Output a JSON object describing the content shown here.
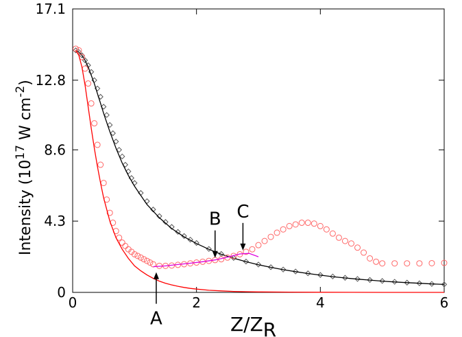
{
  "chart_data": {
    "type": "line",
    "xlabel": "Z/Z",
    "xlabel_sub": "R",
    "ylabel": "Intensity (10",
    "ylabel_sup1": "17",
    "ylabel_mid": " W cm",
    "ylabel_sup2": "-2",
    "ylabel_end": ")",
    "xlim": [
      0,
      6
    ],
    "ylim": [
      0,
      17.1
    ],
    "xticks": [
      0,
      2,
      4,
      6
    ],
    "xtick_labels": [
      "0",
      "2",
      "4",
      "6"
    ],
    "yticks": [
      0,
      4.3,
      8.6,
      12.8,
      17.1
    ],
    "ytick_labels": [
      "0",
      "4.3",
      "8.6",
      "12.8",
      "17.1"
    ],
    "grid": false,
    "series": [
      {
        "marker": "diamond",
        "color": "#555555",
        "style": "markers",
        "x": [
          0.05,
          0.1,
          0.15,
          0.2,
          0.25,
          0.3,
          0.35,
          0.4,
          0.45,
          0.5,
          0.55,
          0.6,
          0.65,
          0.7,
          0.75,
          0.8,
          0.85,
          0.9,
          0.95,
          1.0,
          1.1,
          1.2,
          1.3,
          1.4,
          1.5,
          1.6,
          1.7,
          1.8,
          1.9,
          2.0,
          2.2,
          2.4,
          2.6,
          2.8,
          3.0,
          3.2,
          3.4,
          3.6,
          3.8,
          4.0,
          4.2,
          4.4,
          4.6,
          4.8,
          5.0,
          5.2,
          5.4,
          5.6,
          5.8,
          6.0
        ],
        "y": [
          14.6,
          14.5,
          14.3,
          14.0,
          13.7,
          13.3,
          12.8,
          12.3,
          11.8,
          11.2,
          10.7,
          10.1,
          9.6,
          9.1,
          8.6,
          8.2,
          7.7,
          7.3,
          6.9,
          6.6,
          6.0,
          5.5,
          5.0,
          4.6,
          4.25,
          3.95,
          3.65,
          3.4,
          3.18,
          2.98,
          2.62,
          2.32,
          2.08,
          1.86,
          1.68,
          1.52,
          1.38,
          1.26,
          1.15,
          1.05,
          0.96,
          0.88,
          0.81,
          0.75,
          0.69,
          0.64,
          0.59,
          0.55,
          0.51,
          0.48
        ]
      },
      {
        "marker": "none",
        "color": "#000000",
        "style": "line",
        "x": [
          0.05,
          0.1,
          0.15,
          0.2,
          0.25,
          0.3,
          0.35,
          0.4,
          0.45,
          0.5,
          0.6,
          0.7,
          0.8,
          0.9,
          1.0,
          1.2,
          1.4,
          1.6,
          1.8,
          2.0,
          2.2,
          2.4,
          2.6,
          2.8,
          3.0,
          3.2,
          3.4,
          3.6,
          3.8,
          4.0,
          4.2,
          4.4,
          4.6,
          4.8,
          5.0,
          5.2,
          5.4,
          5.6,
          5.8,
          6.0
        ],
        "y": [
          14.6,
          14.5,
          14.3,
          14.0,
          13.6,
          13.1,
          12.6,
          12.0,
          11.4,
          10.8,
          9.7,
          8.7,
          7.8,
          7.05,
          6.4,
          5.3,
          4.5,
          3.85,
          3.35,
          2.95,
          2.6,
          2.3,
          2.06,
          1.85,
          1.67,
          1.51,
          1.37,
          1.25,
          1.14,
          1.04,
          0.95,
          0.87,
          0.8,
          0.74,
          0.68,
          0.63,
          0.59,
          0.55,
          0.51,
          0.48
        ]
      },
      {
        "marker": "circle",
        "color": "#ff6666",
        "style": "markers",
        "x": [
          0.05,
          0.1,
          0.15,
          0.2,
          0.25,
          0.3,
          0.35,
          0.4,
          0.45,
          0.5,
          0.55,
          0.6,
          0.65,
          0.7,
          0.75,
          0.8,
          0.85,
          0.9,
          0.95,
          1.0,
          1.05,
          1.1,
          1.15,
          1.2,
          1.25,
          1.3,
          1.4,
          1.5,
          1.6,
          1.7,
          1.8,
          1.9,
          2.0,
          2.1,
          2.2,
          2.3,
          2.4,
          2.5,
          2.6,
          2.7,
          2.8,
          2.9,
          3.0,
          3.1,
          3.2,
          3.3,
          3.4,
          3.5,
          3.6,
          3.7,
          3.8,
          3.9,
          4.0,
          4.1,
          4.2,
          4.3,
          4.4,
          4.5,
          4.6,
          4.7,
          4.8,
          4.9,
          5.0,
          5.2,
          5.4,
          5.6,
          5.8,
          6.0
        ],
        "y": [
          14.7,
          14.6,
          14.2,
          13.5,
          12.6,
          11.4,
          10.2,
          8.9,
          7.7,
          6.6,
          5.6,
          4.8,
          4.2,
          3.7,
          3.3,
          3.0,
          2.8,
          2.6,
          2.45,
          2.3,
          2.2,
          2.1,
          2.0,
          1.9,
          1.8,
          1.7,
          1.6,
          1.6,
          1.62,
          1.66,
          1.7,
          1.75,
          1.8,
          1.85,
          1.9,
          1.95,
          2.0,
          2.1,
          2.2,
          2.3,
          2.45,
          2.6,
          2.85,
          3.1,
          3.35,
          3.6,
          3.8,
          4.0,
          4.1,
          4.2,
          4.2,
          4.15,
          4.0,
          3.8,
          3.55,
          3.3,
          3.1,
          2.95,
          2.7,
          2.4,
          2.05,
          1.85,
          1.75,
          1.75,
          1.75,
          1.75,
          1.76,
          1.78
        ]
      },
      {
        "marker": "none",
        "color": "#ff0000",
        "style": "line",
        "x": [
          0.05,
          0.1,
          0.15,
          0.2,
          0.25,
          0.3,
          0.35,
          0.4,
          0.45,
          0.5,
          0.6,
          0.7,
          0.8,
          0.9,
          1.0,
          1.1,
          1.2,
          1.3,
          1.4,
          1.5,
          1.6,
          1.7,
          1.8,
          1.9,
          2.0,
          2.2,
          2.4,
          2.6,
          2.8,
          3.0,
          3.5,
          4.0,
          4.5,
          5.0,
          5.5,
          6.0
        ],
        "y": [
          14.6,
          14.3,
          13.6,
          12.5,
          11.2,
          9.9,
          8.7,
          7.6,
          6.6,
          5.7,
          4.3,
          3.3,
          2.6,
          2.05,
          1.6,
          1.3,
          1.05,
          0.85,
          0.68,
          0.55,
          0.45,
          0.37,
          0.3,
          0.24,
          0.2,
          0.13,
          0.09,
          0.06,
          0.04,
          0.03,
          0.015,
          0.008,
          0.004,
          0.002,
          0.001,
          0.0
        ]
      },
      {
        "marker": "none",
        "color": "#dd00dd",
        "style": "line",
        "x": [
          1.3,
          1.5,
          1.7,
          1.9,
          2.1,
          2.3,
          2.5,
          2.7,
          2.85,
          3.0
        ],
        "y": [
          1.55,
          1.6,
          1.68,
          1.76,
          1.85,
          1.96,
          2.12,
          2.32,
          2.35,
          2.15
        ]
      }
    ],
    "annotations": [
      {
        "label": "A",
        "x": 1.35,
        "y": 1.3
      },
      {
        "label": "B",
        "x": 2.3,
        "y": 2.0
      },
      {
        "label": "C",
        "x": 2.75,
        "y": 2.45
      }
    ]
  }
}
